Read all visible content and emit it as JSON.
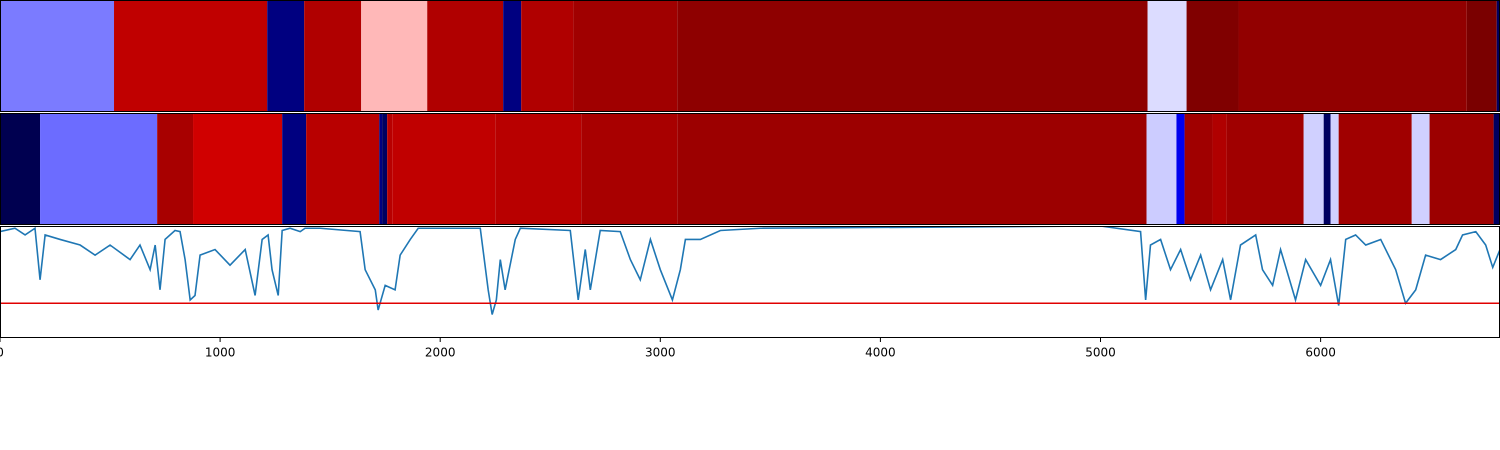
{
  "chart_data": {
    "type": "tracks",
    "xlim": [
      0,
      6815
    ],
    "xticks": [
      0,
      1000,
      2000,
      3000,
      4000,
      5000,
      6000
    ],
    "tracks": [
      {
        "segments": [
          {
            "x0": 0,
            "x1": 518,
            "color": "#7b7bff"
          },
          {
            "x0": 518,
            "x1": 1214,
            "color": "#c00000"
          },
          {
            "x0": 1214,
            "x1": 1382,
            "color": "#000080"
          },
          {
            "x0": 1382,
            "x1": 1641,
            "color": "#b00000"
          },
          {
            "x0": 1641,
            "x1": 1941,
            "color": "#ffb8b8"
          },
          {
            "x0": 1941,
            "x1": 2286,
            "color": "#b00000"
          },
          {
            "x0": 2286,
            "x1": 2368,
            "color": "#000080"
          },
          {
            "x0": 2368,
            "x1": 2605,
            "color": "#b00000"
          },
          {
            "x0": 2605,
            "x1": 3077,
            "color": "#a00000"
          },
          {
            "x0": 3077,
            "x1": 5214,
            "color": "#8e0000"
          },
          {
            "x0": 5214,
            "x1": 5391,
            "color": "#dcdcff"
          },
          {
            "x0": 5391,
            "x1": 5627,
            "color": "#800000"
          },
          {
            "x0": 5627,
            "x1": 6664,
            "color": "#920000"
          },
          {
            "x0": 6664,
            "x1": 6800,
            "color": "#7a0000"
          },
          {
            "x0": 6800,
            "x1": 6815,
            "color": "#000060"
          }
        ]
      },
      {
        "segments": [
          {
            "x0": 0,
            "x1": 182,
            "color": "#000050"
          },
          {
            "x0": 182,
            "x1": 714,
            "color": "#6c6cff"
          },
          {
            "x0": 714,
            "x1": 877,
            "color": "#a80000"
          },
          {
            "x0": 877,
            "x1": 1282,
            "color": "#d00000"
          },
          {
            "x0": 1282,
            "x1": 1391,
            "color": "#000080"
          },
          {
            "x0": 1391,
            "x1": 1723,
            "color": "#b80000"
          },
          {
            "x0": 1723,
            "x1": 1736,
            "color": "#000080"
          },
          {
            "x0": 1736,
            "x1": 1759,
            "color": "#000060"
          },
          {
            "x0": 1759,
            "x1": 1782,
            "color": "#b80000"
          },
          {
            "x0": 1782,
            "x1": 2250,
            "color": "#c00000"
          },
          {
            "x0": 2250,
            "x1": 2641,
            "color": "#b80000"
          },
          {
            "x0": 2641,
            "x1": 3077,
            "color": "#a80000"
          },
          {
            "x0": 3077,
            "x1": 5209,
            "color": "#9c0000"
          },
          {
            "x0": 5209,
            "x1": 5345,
            "color": "#ccccff"
          },
          {
            "x0": 5345,
            "x1": 5382,
            "color": "#0000ee"
          },
          {
            "x0": 5382,
            "x1": 5509,
            "color": "#a00000"
          },
          {
            "x0": 5509,
            "x1": 5573,
            "color": "#b00000"
          },
          {
            "x0": 5573,
            "x1": 5923,
            "color": "#a00000"
          },
          {
            "x0": 5923,
            "x1": 6014,
            "color": "#d0d0ff"
          },
          {
            "x0": 6014,
            "x1": 6045,
            "color": "#000060"
          },
          {
            "x0": 6045,
            "x1": 6082,
            "color": "#d0d0ff"
          },
          {
            "x0": 6082,
            "x1": 6414,
            "color": "#a00000"
          },
          {
            "x0": 6414,
            "x1": 6495,
            "color": "#d0d0ff"
          },
          {
            "x0": 6495,
            "x1": 6786,
            "color": "#9c0000"
          },
          {
            "x0": 6786,
            "x1": 6815,
            "color": "#000060"
          }
        ]
      }
    ],
    "ylim": [
      0,
      1
    ],
    "series": [
      {
        "color": "#1f77b4",
        "x": [
          0,
          68,
          114,
          159,
          182,
          205,
          273,
          364,
          432,
          500,
          591,
          636,
          682,
          705,
          727,
          750,
          795,
          818,
          841,
          864,
          886,
          909,
          977,
          1045,
          1114,
          1159,
          1191,
          1218,
          1236,
          1264,
          1282,
          1318,
          1364,
          1386,
          1455,
          1636,
          1659,
          1705,
          1718,
          1750,
          1795,
          1818,
          1864,
          1900,
          2182,
          2218,
          2236,
          2255,
          2273,
          2295,
          2341,
          2364,
          2591,
          2627,
          2659,
          2682,
          2727,
          2818,
          2864,
          2909,
          2955,
          3000,
          3055,
          3091,
          3114,
          3182,
          3273,
          3455,
          5000,
          5182,
          5205,
          5227,
          5273,
          5318,
          5364,
          5409,
          5455,
          5500,
          5555,
          5591,
          5636,
          5705,
          5736,
          5782,
          5818,
          5886,
          5932,
          6000,
          6045,
          6082,
          6114,
          6159,
          6205,
          6273,
          6341,
          6386,
          6432,
          6477,
          6545,
          6614,
          6645,
          6705,
          6750,
          6782,
          6815
        ],
        "values": [
          0.95,
          0.98,
          0.92,
          0.98,
          0.52,
          0.92,
          0.88,
          0.83,
          0.74,
          0.83,
          0.7,
          0.83,
          0.61,
          0.83,
          0.43,
          0.88,
          0.96,
          0.95,
          0.7,
          0.34,
          0.38,
          0.74,
          0.79,
          0.65,
          0.79,
          0.38,
          0.88,
          0.92,
          0.61,
          0.38,
          0.96,
          0.98,
          0.95,
          0.98,
          0.98,
          0.95,
          0.61,
          0.43,
          0.25,
          0.47,
          0.43,
          0.74,
          0.88,
          0.98,
          0.98,
          0.43,
          0.21,
          0.34,
          0.7,
          0.43,
          0.88,
          0.98,
          0.96,
          0.34,
          0.79,
          0.43,
          0.96,
          0.95,
          0.7,
          0.52,
          0.88,
          0.61,
          0.34,
          0.61,
          0.88,
          0.88,
          0.96,
          0.98,
          1.0,
          0.95,
          0.34,
          0.83,
          0.88,
          0.61,
          0.79,
          0.52,
          0.74,
          0.43,
          0.7,
          0.34,
          0.83,
          0.92,
          0.61,
          0.47,
          0.79,
          0.34,
          0.7,
          0.47,
          0.7,
          0.29,
          0.88,
          0.92,
          0.83,
          0.88,
          0.61,
          0.31,
          0.43,
          0.74,
          0.7,
          0.79,
          0.92,
          0.95,
          0.83,
          0.63,
          0.79
        ]
      }
    ],
    "hline": {
      "value": 0.31,
      "color": "#e00000"
    }
  }
}
